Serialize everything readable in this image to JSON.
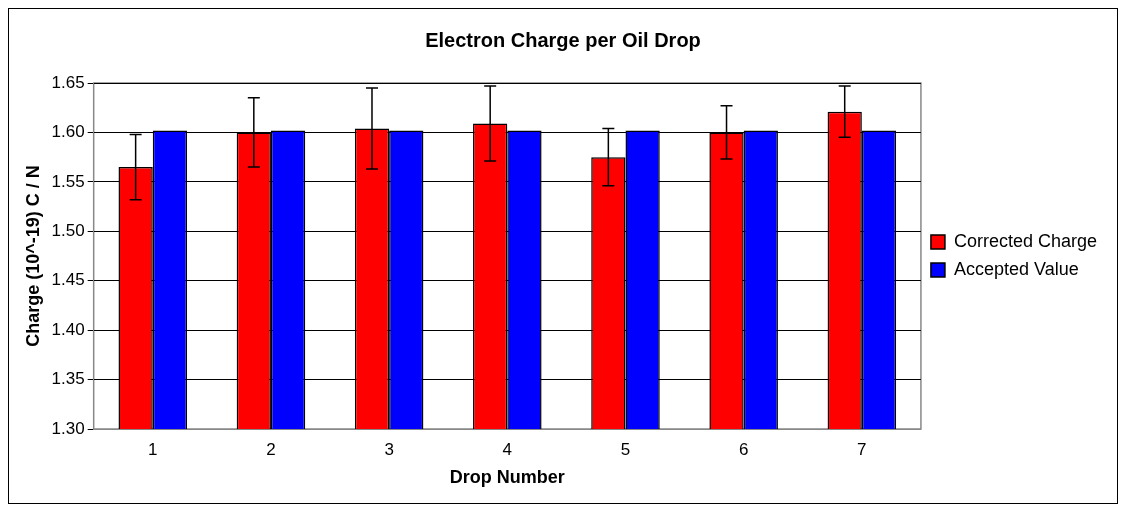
{
  "chart_data": {
    "type": "bar",
    "title": "Electron Charge per Oil Drop",
    "xlabel": "Drop Number",
    "ylabel": "Charge (10^-19) C / N",
    "categories": [
      "1",
      "2",
      "3",
      "4",
      "5",
      "6",
      "7"
    ],
    "series": [
      {
        "name": "Corrected Charge",
        "color": "#ff0000",
        "values": [
          1.565,
          1.6,
          1.604,
          1.609,
          1.575,
          1.6,
          1.621
        ],
        "errors": [
          0.033,
          0.035,
          0.041,
          0.038,
          0.029,
          0.027,
          0.026
        ]
      },
      {
        "name": "Accepted Value",
        "color": "#0000ff",
        "values": [
          1.602,
          1.602,
          1.602,
          1.602,
          1.602,
          1.602,
          1.602
        ]
      }
    ],
    "ylim": [
      1.3,
      1.65
    ],
    "yticks": [
      {
        "value": 1.3,
        "label": "1.30"
      },
      {
        "value": 1.35,
        "label": "1.35"
      },
      {
        "value": 1.4,
        "label": "1.40"
      },
      {
        "value": 1.45,
        "label": "1.45"
      },
      {
        "value": 1.5,
        "label": "1.50"
      },
      {
        "value": 1.55,
        "label": "1.55"
      },
      {
        "value": 1.6,
        "label": "1.60"
      },
      {
        "value": 1.65,
        "label": "1.65"
      }
    ],
    "grid": "y",
    "legend": "right"
  }
}
